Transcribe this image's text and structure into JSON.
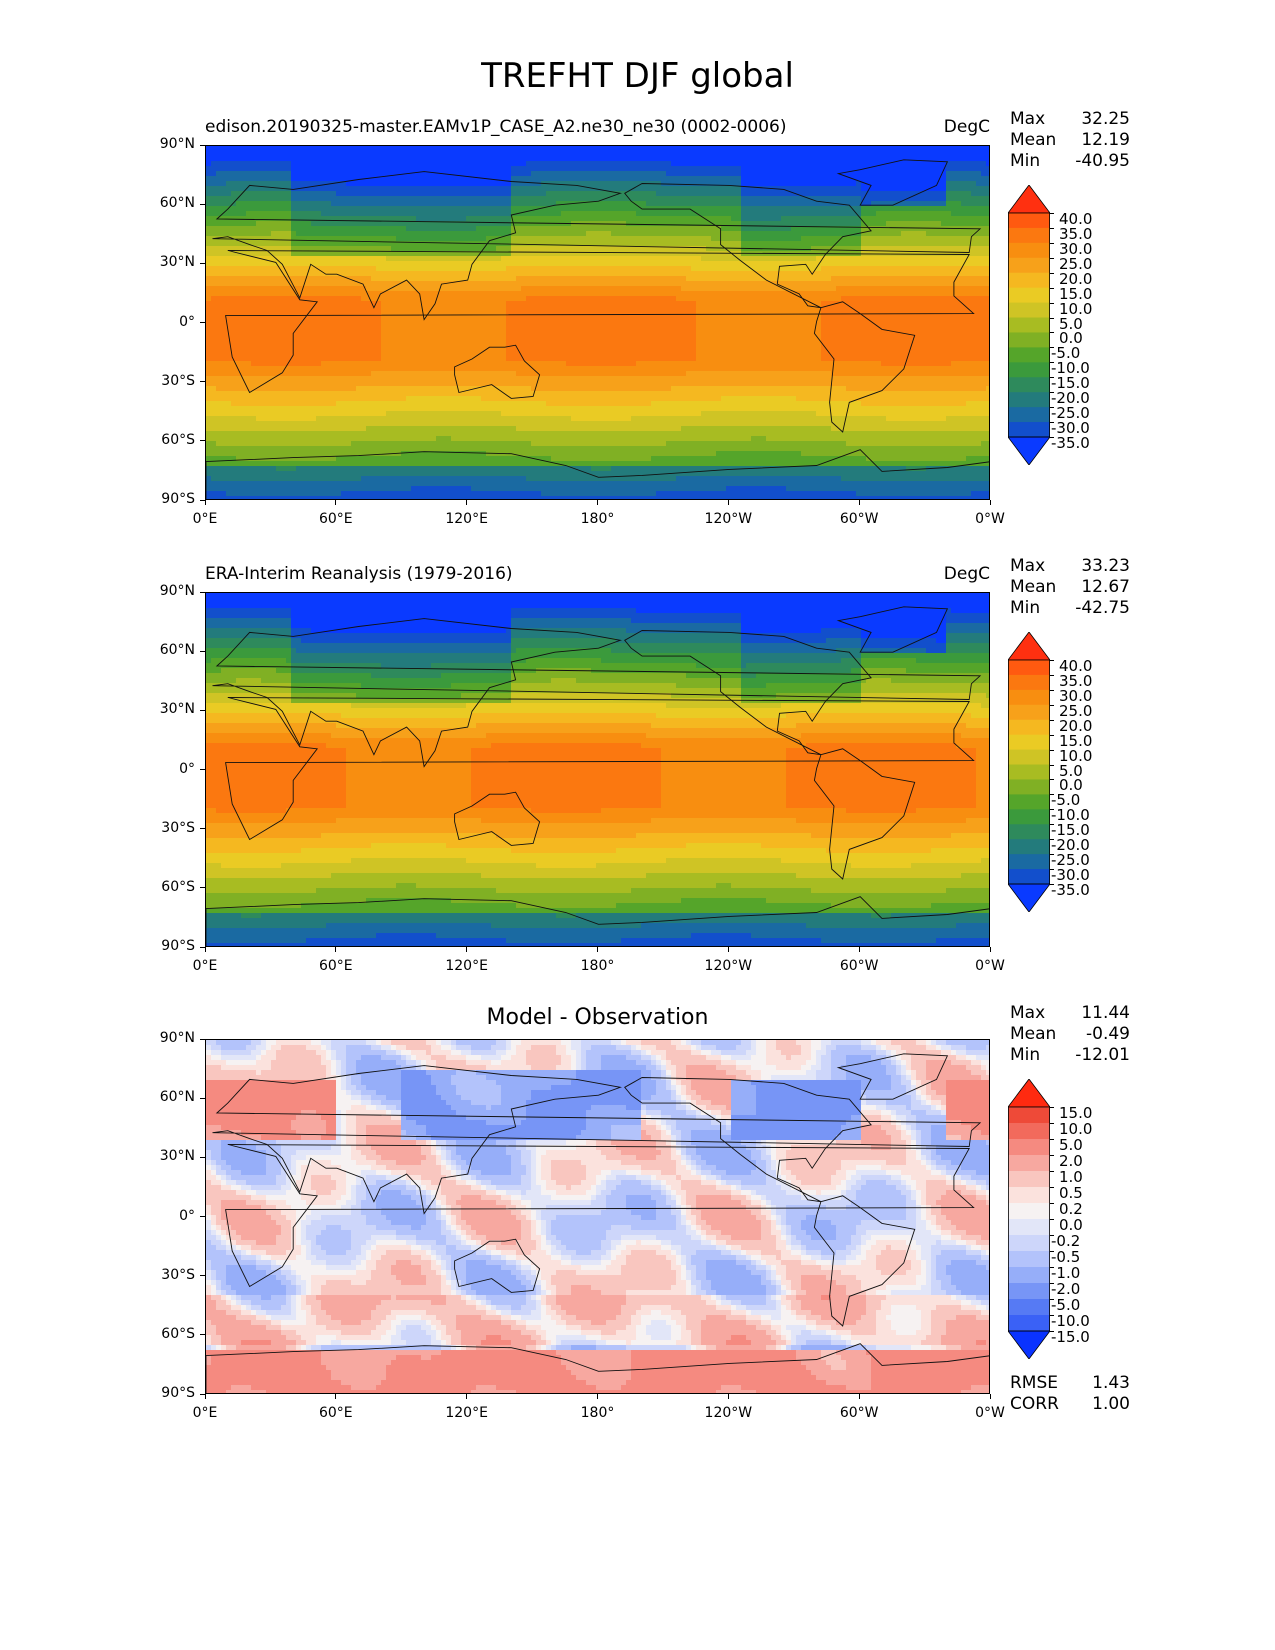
{
  "title": "TREFHT DJF global",
  "chart_data": [
    {
      "type": "heatmap",
      "title_left": "edison.20190325-master.EAMv1P_CASE_A2.ne30_ne30 (0002-0006)",
      "title_right": "DegC",
      "stats": [
        {
          "label": "Max",
          "value": "32.25"
        },
        {
          "label": "Mean",
          "value": "12.19"
        },
        {
          "label": "Min",
          "value": "-40.95"
        }
      ],
      "x_ticks": [
        "0°E",
        "60°E",
        "120°E",
        "180°",
        "120°W",
        "60°W",
        "0°W"
      ],
      "y_ticks": [
        "90°N",
        "60°N",
        "30°N",
        "0°",
        "30°S",
        "60°S",
        "90°S"
      ],
      "colorbar": {
        "labels": [
          "40.0",
          "35.0",
          "30.0",
          "25.0",
          "20.0",
          "15.0",
          "10.0",
          "5.0",
          "0.0",
          "-5.0",
          "-10.0",
          "-15.0",
          "-20.0",
          "-25.0",
          "-30.0",
          "-35.0"
        ],
        "colors": [
          "#ff3010",
          "#ff5a10",
          "#fb7810",
          "#f88e10",
          "#f7a11a",
          "#f5b820",
          "#eacb24",
          "#cfc425",
          "#a8bc22",
          "#80b024",
          "#55a52a",
          "#3b9a3c",
          "#2e8a5c",
          "#237b7c",
          "#1a6aa2",
          "#124fcc",
          "#0a3aff"
        ]
      },
      "field": "temperature"
    },
    {
      "type": "heatmap",
      "title_left": "ERA-Interim Reanalysis (1979-2016)",
      "title_right": "DegC",
      "stats": [
        {
          "label": "Max",
          "value": "33.23"
        },
        {
          "label": "Mean",
          "value": "12.67"
        },
        {
          "label": "Min",
          "value": "-42.75"
        }
      ],
      "x_ticks": [
        "0°E",
        "60°E",
        "120°E",
        "180°",
        "120°W",
        "60°W",
        "0°W"
      ],
      "y_ticks": [
        "90°N",
        "60°N",
        "30°N",
        "0°",
        "30°S",
        "60°S",
        "90°S"
      ],
      "colorbar": {
        "labels": [
          "40.0",
          "35.0",
          "30.0",
          "25.0",
          "20.0",
          "15.0",
          "10.0",
          "5.0",
          "0.0",
          "-5.0",
          "-10.0",
          "-15.0",
          "-20.0",
          "-25.0",
          "-30.0",
          "-35.0"
        ],
        "colors": [
          "#ff3010",
          "#ff5a10",
          "#fb7810",
          "#f88e10",
          "#f7a11a",
          "#f5b820",
          "#eacb24",
          "#cfc425",
          "#a8bc22",
          "#80b024",
          "#55a52a",
          "#3b9a3c",
          "#2e8a5c",
          "#237b7c",
          "#1a6aa2",
          "#124fcc",
          "#0a3aff"
        ]
      },
      "field": "temperature"
    },
    {
      "type": "heatmap",
      "title_center": "Model - Observation",
      "stats": [
        {
          "label": "Max",
          "value": "11.44"
        },
        {
          "label": "Mean",
          "value": "-0.49"
        },
        {
          "label": "Min",
          "value": "-12.01"
        }
      ],
      "extra_stats": [
        {
          "label": "RMSE",
          "value": "1.43"
        },
        {
          "label": "CORR",
          "value": "1.00"
        }
      ],
      "x_ticks": [
        "0°E",
        "60°E",
        "120°E",
        "180°",
        "120°W",
        "60°W",
        "0°W"
      ],
      "y_ticks": [
        "90°N",
        "60°N",
        "30°N",
        "0°",
        "30°S",
        "60°S",
        "90°S"
      ],
      "colorbar": {
        "labels": [
          "15.0",
          "10.0",
          "5.0",
          "2.0",
          "1.0",
          "0.5",
          "0.2",
          "0.0",
          "-0.2",
          "-0.5",
          "-1.0",
          "-2.0",
          "-5.0",
          "-10.0",
          "-15.0"
        ],
        "colors": [
          "#ff2a10",
          "#ee4a38",
          "#f26a5c",
          "#f58a80",
          "#f7a8a0",
          "#f9c6bf",
          "#fbe2dd",
          "#f6f2f2",
          "#e2e6f8",
          "#cdd6fa",
          "#b3c3fb",
          "#96aef9",
          "#7795f6",
          "#567af4",
          "#3a61f6",
          "#0a33ff"
        ]
      },
      "field": "difference"
    }
  ]
}
